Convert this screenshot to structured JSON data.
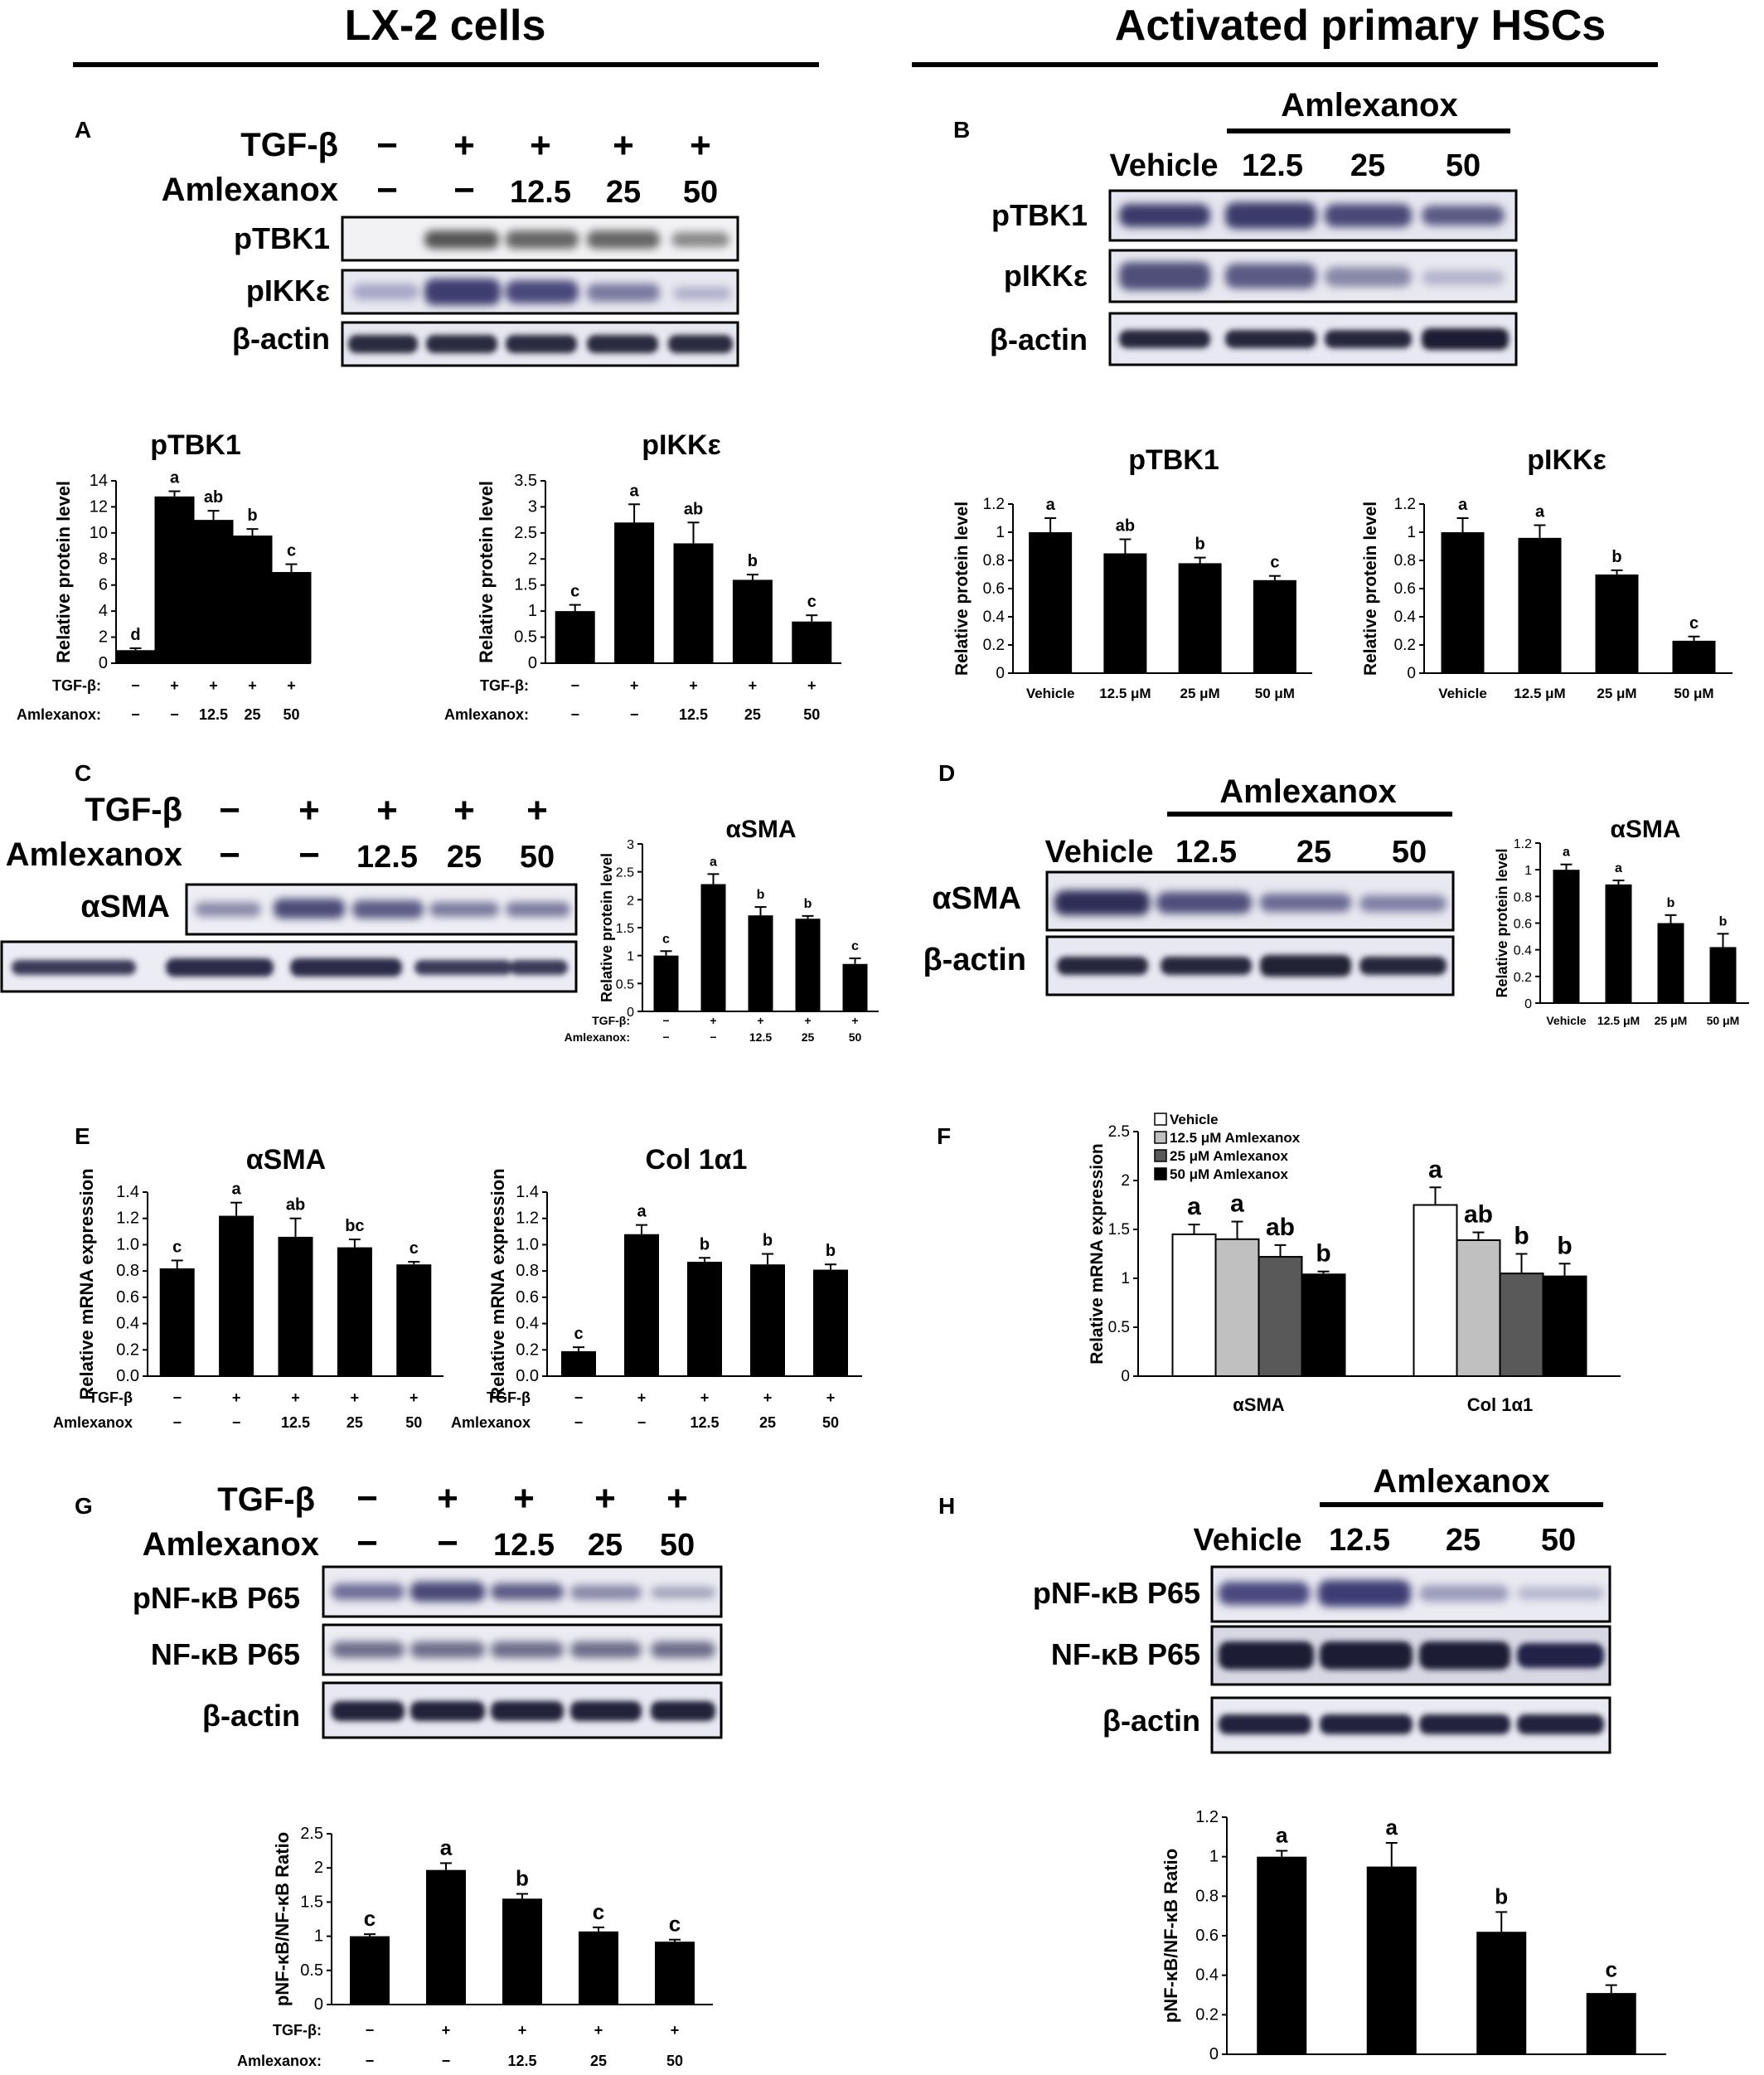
{
  "headers": {
    "left": "LX-2 cells",
    "right": "Activated primary HSCs"
  },
  "panel_letters": [
    "A",
    "B",
    "C",
    "D",
    "E",
    "F",
    "G",
    "H"
  ],
  "labels": {
    "tgf": "TGF-β",
    "tgf_small": "TGF-β:",
    "tgf_small2": "TGF-β",
    "amx": "Amlexanox",
    "amx_small": "Amlexanox:",
    "minus": "−",
    "plus": "+",
    "doses": [
      "12.5",
      "25",
      "50"
    ],
    "vehicle": "Vehicle",
    "doses_um": [
      "12.5 μM",
      "25 μM",
      "50 μM"
    ],
    "ptbk1": "pTBK1",
    "pikke": "pIKKε",
    "bactin": "β-actin",
    "asma": "αSMA",
    "col": "Col 1α1",
    "pnfkb": "pNF-κB P65",
    "nfkb": "NF-κB P65",
    "ylabel_protein": "Relative protein level",
    "ylabel_mrna": "Relative mRNA expression",
    "ylabel_ratio": "pNF-κB/NF-κB Ratio"
  },
  "chart_data": [
    {
      "id": "A1",
      "type": "bar",
      "title": "pTBK1",
      "ylabel": "Relative protein level",
      "ylim": [
        0,
        14
      ],
      "yticks": [
        0,
        2,
        4,
        6,
        8,
        10,
        12,
        14
      ],
      "values": [
        1.0,
        12.8,
        11.0,
        9.8,
        7.0
      ],
      "errors": [
        0.15,
        0.4,
        0.7,
        0.5,
        0.6
      ],
      "letters": [
        "d",
        "a",
        "ab",
        "b",
        "c"
      ],
      "rows": [
        [
          "TGF-β:",
          "−",
          "+",
          "+",
          "+",
          "+"
        ],
        [
          "Amlexanox:",
          "−",
          "−",
          "12.5",
          "25",
          "50"
        ]
      ]
    },
    {
      "id": "A2",
      "type": "bar",
      "title": "pIKKε",
      "ylabel": "Relative protein level",
      "ylim": [
        0,
        3.5
      ],
      "yticks": [
        0,
        0.5,
        1,
        1.5,
        2,
        2.5,
        3,
        3.5
      ],
      "values": [
        1.0,
        2.7,
        2.3,
        1.6,
        0.8
      ],
      "errors": [
        0.12,
        0.35,
        0.4,
        0.1,
        0.12
      ],
      "letters": [
        "c",
        "a",
        "ab",
        "b",
        "c"
      ],
      "rows": [
        [
          "TGF-β:",
          "−",
          "+",
          "+",
          "+",
          "+"
        ],
        [
          "Amlexanox:",
          "−",
          "−",
          "12.5",
          "25",
          "50"
        ]
      ]
    },
    {
      "id": "B1",
      "type": "bar",
      "title": "pTBK1",
      "ylabel": "Relative protein level",
      "ylim": [
        0,
        1.2
      ],
      "yticks": [
        0,
        0.2,
        0.4,
        0.6,
        0.8,
        1,
        1.2
      ],
      "values": [
        1.0,
        0.85,
        0.78,
        0.66
      ],
      "errors": [
        0.1,
        0.1,
        0.04,
        0.03
      ],
      "letters": [
        "a",
        "ab",
        "b",
        "c"
      ],
      "categories": [
        "Vehicle",
        "12.5 μM",
        "25 μM",
        "50 μM"
      ]
    },
    {
      "id": "B2",
      "type": "bar",
      "title": "pIKKε",
      "ylabel": "Relative protein level",
      "ylim": [
        0,
        1.2
      ],
      "yticks": [
        0,
        0.2,
        0.4,
        0.6,
        0.8,
        1,
        1.2
      ],
      "values": [
        1.0,
        0.96,
        0.7,
        0.23
      ],
      "errors": [
        0.1,
        0.09,
        0.03,
        0.03
      ],
      "letters": [
        "a",
        "a",
        "b",
        "c"
      ],
      "categories": [
        "Vehicle",
        "12.5 μM",
        "25 μM",
        "50 μM"
      ]
    },
    {
      "id": "C",
      "type": "bar",
      "title": "αSMA",
      "ylabel": "Relative protein level",
      "ylim": [
        0,
        3
      ],
      "yticks": [
        0,
        0.5,
        1,
        1.5,
        2,
        2.5,
        3
      ],
      "values": [
        1.0,
        2.28,
        1.72,
        1.66,
        0.85
      ],
      "errors": [
        0.08,
        0.18,
        0.15,
        0.05,
        0.1
      ],
      "letters": [
        "c",
        "a",
        "b",
        "b",
        "c"
      ],
      "rows": [
        [
          "TGF-β:",
          "−",
          "+",
          "+",
          "+",
          "+"
        ],
        [
          "Amlexanox:",
          "−",
          "−",
          "12.5",
          "25",
          "50"
        ]
      ]
    },
    {
      "id": "D",
      "type": "bar",
      "title": "αSMA",
      "ylabel": "Relative protein level",
      "ylim": [
        0,
        1.2
      ],
      "yticks": [
        0,
        0.2,
        0.4,
        0.6,
        0.8,
        1,
        1.2
      ],
      "values": [
        1.0,
        0.89,
        0.6,
        0.42
      ],
      "errors": [
        0.04,
        0.03,
        0.06,
        0.1
      ],
      "letters": [
        "a",
        "a",
        "b",
        "b"
      ],
      "categories": [
        "Vehicle",
        "12.5 μM",
        "25 μM",
        "50 μM"
      ]
    },
    {
      "id": "E1",
      "type": "bar",
      "title": "αSMA",
      "ylabel": "Relative mRNA expression",
      "ylim": [
        0,
        1.4
      ],
      "yticks": [
        0,
        0.2,
        0.4,
        0.6,
        0.8,
        1.0,
        1.2,
        1.4
      ],
      "values": [
        0.82,
        1.22,
        1.06,
        0.98,
        0.85
      ],
      "errors": [
        0.06,
        0.1,
        0.14,
        0.06,
        0.02
      ],
      "letters": [
        "c",
        "a",
        "ab",
        "bc",
        "c"
      ],
      "rows": [
        [
          "TGF-β",
          "−",
          "+",
          "+",
          "+",
          "+"
        ],
        [
          "Amlexanox",
          "−",
          "−",
          "12.5",
          "25",
          "50"
        ]
      ]
    },
    {
      "id": "E2",
      "type": "bar",
      "title": "Col 1α1",
      "ylabel": "Relative mRNA expression",
      "ylim": [
        0,
        1.4
      ],
      "yticks": [
        0,
        0.2,
        0.4,
        0.6,
        0.8,
        1.0,
        1.2,
        1.4
      ],
      "values": [
        0.19,
        1.08,
        0.87,
        0.85,
        0.81
      ],
      "errors": [
        0.03,
        0.07,
        0.03,
        0.08,
        0.04
      ],
      "letters": [
        "c",
        "a",
        "b",
        "b",
        "b"
      ],
      "rows": [
        [
          "TGF-β",
          "−",
          "+",
          "+",
          "+",
          "+"
        ],
        [
          "Amlexanox",
          "−",
          "−",
          "12.5",
          "25",
          "50"
        ]
      ]
    },
    {
      "id": "F",
      "type": "bar",
      "title": "",
      "ylabel": "Relative mRNA expression",
      "ylim": [
        0,
        2.5
      ],
      "yticks": [
        0,
        0.5,
        1,
        1.5,
        2,
        2.5
      ],
      "categories": [
        "αSMA",
        "Col 1α1"
      ],
      "series": [
        {
          "name": "Vehicle",
          "values": [
            1.45,
            1.75
          ],
          "errors": [
            0.1,
            0.18
          ],
          "letters": [
            "a",
            "a"
          ],
          "color": "#ffffff"
        },
        {
          "name": "12.5 μM Amlexanox",
          "values": [
            1.4,
            1.39
          ],
          "errors": [
            0.18,
            0.08
          ],
          "letters": [
            "a",
            "ab"
          ],
          "color": "#c0c0c0"
        },
        {
          "name": "25 μM Amlexanox",
          "values": [
            1.22,
            1.05
          ],
          "errors": [
            0.12,
            0.2
          ],
          "letters": [
            "ab",
            "b"
          ],
          "color": "#595959"
        },
        {
          "name": "50 μM Amlexanox",
          "values": [
            1.04,
            1.02
          ],
          "errors": [
            0.03,
            0.13
          ],
          "letters": [
            "b",
            "b"
          ],
          "color": "#000000"
        }
      ]
    },
    {
      "id": "G",
      "type": "bar",
      "title": "",
      "ylabel": "pNF-κB/NF-κB Ratio",
      "ylim": [
        0,
        2.5
      ],
      "yticks": [
        0,
        0.5,
        1,
        1.5,
        2,
        2.5
      ],
      "values": [
        1.0,
        1.97,
        1.55,
        1.07,
        0.92
      ],
      "errors": [
        0.03,
        0.1,
        0.07,
        0.06,
        0.03
      ],
      "letters": [
        "c",
        "a",
        "b",
        "c",
        "c"
      ],
      "rows": [
        [
          "TGF-β:",
          "−",
          "+",
          "+",
          "+",
          "+"
        ],
        [
          "Amlexanox:",
          "−",
          "−",
          "12.5",
          "25",
          "50"
        ]
      ]
    },
    {
      "id": "H",
      "type": "bar",
      "title": "",
      "ylabel": "pNF-κB/NF-κB Ratio",
      "ylim": [
        0,
        1.2
      ],
      "yticks": [
        0,
        0.2,
        0.4,
        0.6,
        0.8,
        1,
        1.2
      ],
      "values": [
        1.0,
        0.95,
        0.62,
        0.31
      ],
      "errors": [
        0.03,
        0.12,
        0.1,
        0.04
      ],
      "letters": [
        "a",
        "a",
        "b",
        "c"
      ],
      "categories": [
        "Vehicle",
        "12.5 μM",
        "25 μM",
        "50 μM"
      ]
    }
  ]
}
